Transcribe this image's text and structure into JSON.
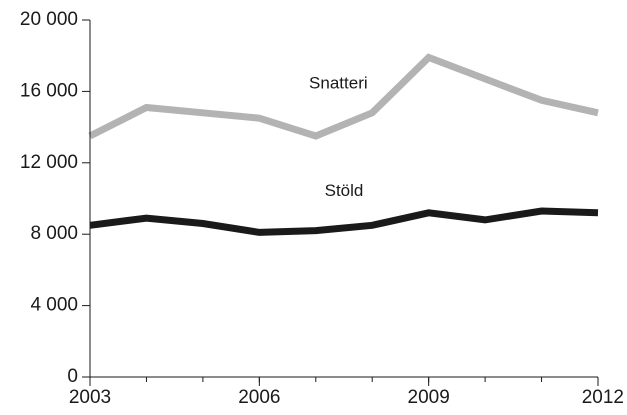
{
  "chart_data": {
    "type": "line",
    "title": "",
    "xlabel": "",
    "ylabel": "",
    "x": [
      2003,
      2004,
      2005,
      2006,
      2007,
      2008,
      2009,
      2010,
      2011,
      2012
    ],
    "xlim": [
      2003,
      2012
    ],
    "ylim": [
      0,
      20000
    ],
    "x_ticks": [
      {
        "value": 2003,
        "label": "2003"
      },
      {
        "value": 2006,
        "label": "2006"
      },
      {
        "value": 2009,
        "label": "2009"
      },
      {
        "value": 2012,
        "label": "2012"
      }
    ],
    "y_ticks": [
      {
        "value": 0,
        "label": "0"
      },
      {
        "value": 4000,
        "label": "4 000"
      },
      {
        "value": 8000,
        "label": "8 000"
      },
      {
        "value": 12000,
        "label": "12 000"
      },
      {
        "value": 16000,
        "label": "16 000"
      },
      {
        "value": 20000,
        "label": "20 000"
      }
    ],
    "grid": false,
    "legend": "none",
    "series": [
      {
        "name": "Snatteri",
        "color": "#b3b3b3",
        "values": [
          13500,
          15100,
          14800,
          14500,
          13500,
          14800,
          17900,
          16700,
          15500,
          14800
        ],
        "label_anchor": {
          "x": 2007.4,
          "y": 16400
        }
      },
      {
        "name": "Stöld",
        "color": "#1a1a1a",
        "values": [
          8500,
          8900,
          8600,
          8100,
          8200,
          8500,
          9200,
          8800,
          9300,
          9200
        ],
        "label_anchor": {
          "x": 2007.5,
          "y": 10400
        }
      }
    ]
  }
}
